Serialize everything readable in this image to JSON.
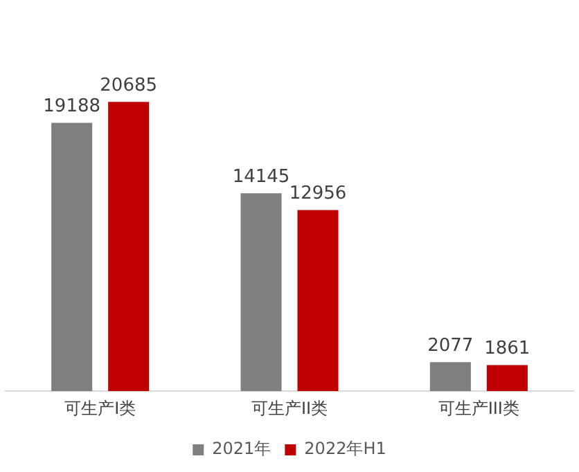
{
  "chart_data": {
    "type": "bar",
    "categories": [
      "可生产I类",
      "可生产II类",
      "可生产III类"
    ],
    "series": [
      {
        "name": "2021年",
        "color": "#7f7f7f",
        "values": [
          19188,
          14145,
          2077
        ]
      },
      {
        "name": "2022年H1",
        "color": "#c00000",
        "values": [
          20685,
          12956,
          1861
        ]
      }
    ],
    "data_labels": true,
    "legend": "bottom",
    "grid": false
  }
}
